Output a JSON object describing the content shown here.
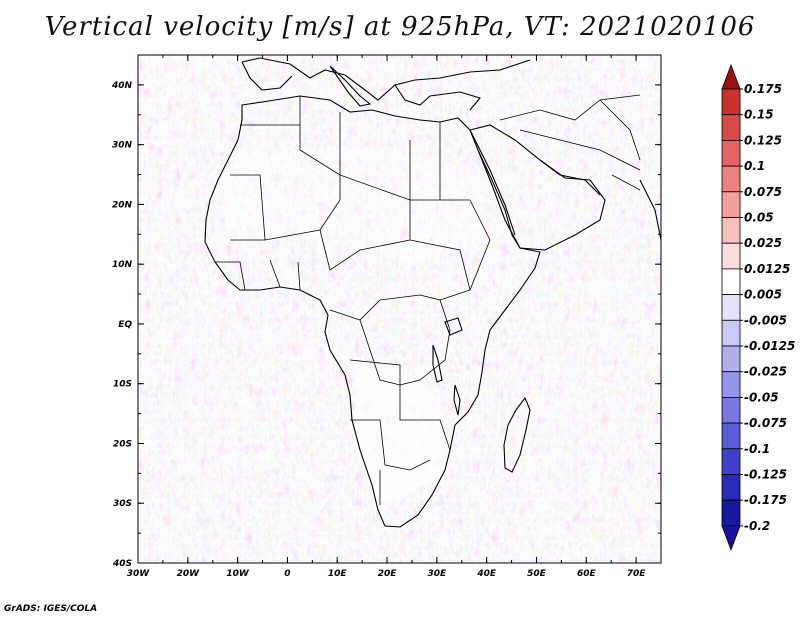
{
  "title": "Vertical velocity [m/s] at 925hPa, VT: 2021020106",
  "footer": "GrADS: IGES/COLA",
  "map": {
    "lon_range": [
      -30,
      75
    ],
    "lat_range": [
      -40,
      45
    ],
    "lat_labels": [
      "40N",
      "30N",
      "20N",
      "10N",
      "EQ",
      "10S",
      "20S",
      "30S",
      "40S"
    ],
    "lon_labels": [
      "30W",
      "20W",
      "10W",
      "0",
      "10E",
      "20E",
      "30E",
      "40E",
      "50E",
      "60E",
      "70E"
    ]
  },
  "colorbar": {
    "labels": [
      "0.175",
      "0.15",
      "0.125",
      "0.1",
      "0.075",
      "0.05",
      "0.025",
      "0.0125",
      "0.005",
      "-0.005",
      "-0.0125",
      "-0.025",
      "-0.05",
      "-0.075",
      "-0.1",
      "-0.125",
      "-0.175",
      "-0.2"
    ],
    "colors": [
      "#b51e22",
      "#c8322f",
      "#d8494a",
      "#e36565",
      "#ec8181",
      "#f2a0a0",
      "#f7bfbf",
      "#fbdcdc",
      "#ffffff",
      "#e3e3fb",
      "#c9c9f5",
      "#b0b0ef",
      "#9494e8",
      "#7878e0",
      "#5c5cd6",
      "#4040cc",
      "#2a2ab8",
      "#16169e"
    ],
    "top_arrow_color": "#a01010",
    "bottom_arrow_color": "#1a10a0"
  }
}
